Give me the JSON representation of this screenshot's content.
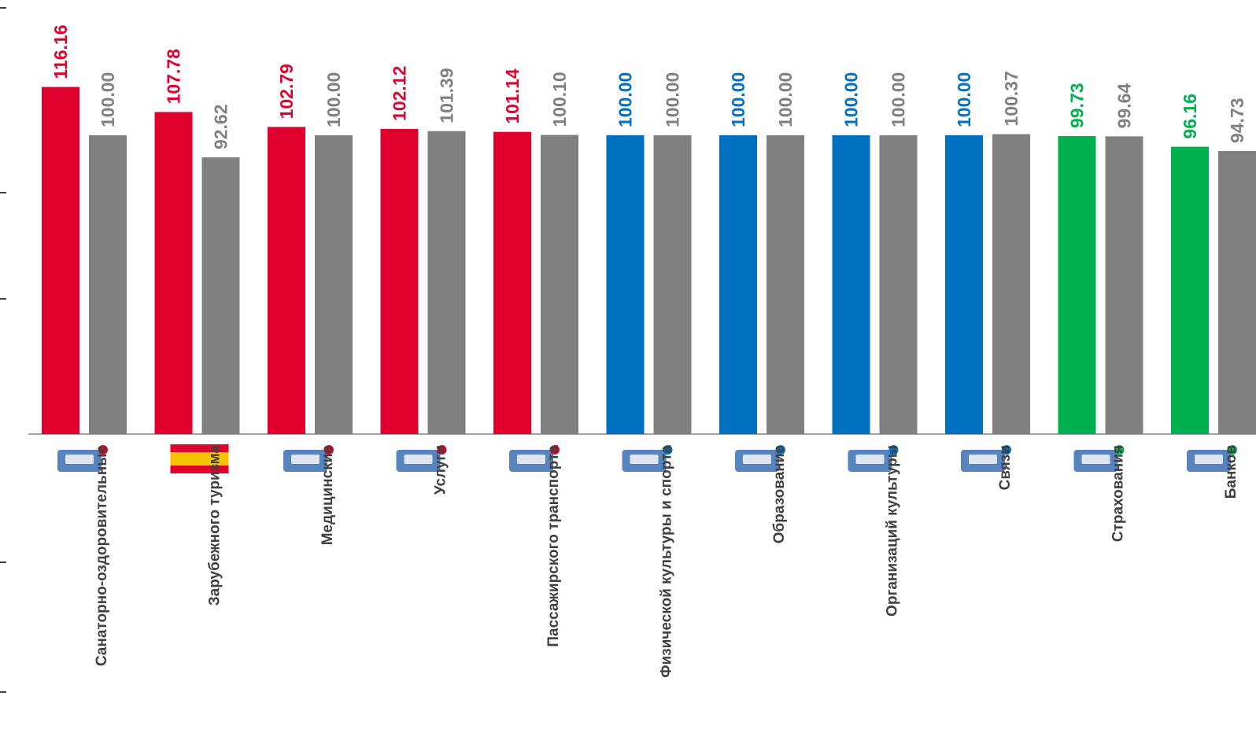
{
  "chart_data": {
    "type": "bar",
    "title": "",
    "xlabel": "",
    "ylabel": "",
    "ylim": [
      0,
      125
    ],
    "grid": false,
    "legend": "none",
    "categories": [
      "Санаторно-оздоровительные",
      "Зарубежного туризма",
      "Медицинские",
      "Услуги",
      "Пассажирского транспорта",
      "Физической культуры и спорта",
      "Образование",
      "Организаций культуры",
      "Связи",
      "Страхования",
      "Банков"
    ],
    "series": [
      {
        "values": [
          116.16,
          107.78,
          102.79,
          102.12,
          101.14,
          100.0,
          100.0,
          100.0,
          100.0,
          99.73,
          96.16
        ],
        "labels": [
          "116.16",
          "107.78",
          "102.79",
          "102.12",
          "101.14",
          "100.00",
          "100.00",
          "100.00",
          "100.00",
          "99.73",
          "96.16"
        ],
        "colors": [
          "#e0002d",
          "#e0002d",
          "#e0002d",
          "#e0002d",
          "#e0002d",
          "#0070c0",
          "#0070c0",
          "#0070c0",
          "#0070c0",
          "#00b050",
          "#00b050"
        ]
      },
      {
        "values": [
          100.0,
          92.62,
          100.0,
          101.39,
          100.1,
          100.0,
          100.0,
          100.0,
          100.37,
          99.64,
          94.73
        ],
        "labels": [
          "100.00",
          "92.62",
          "100.00",
          "101.39",
          "100.10",
          "100.00",
          "100.00",
          "100.00",
          "100.37",
          "99.64",
          "94.73"
        ],
        "color": "#808080"
      }
    ],
    "icons": [
      "sanatorium-icon",
      "spain-flag-icon",
      "medical-icon",
      "services-icon",
      "transport-icon",
      "swimming-pool-icon",
      "education-icon",
      "cinema-ticket-icon",
      "telephone-mail-icon",
      "car-insurance-icon",
      "bank-card-icon"
    ]
  }
}
